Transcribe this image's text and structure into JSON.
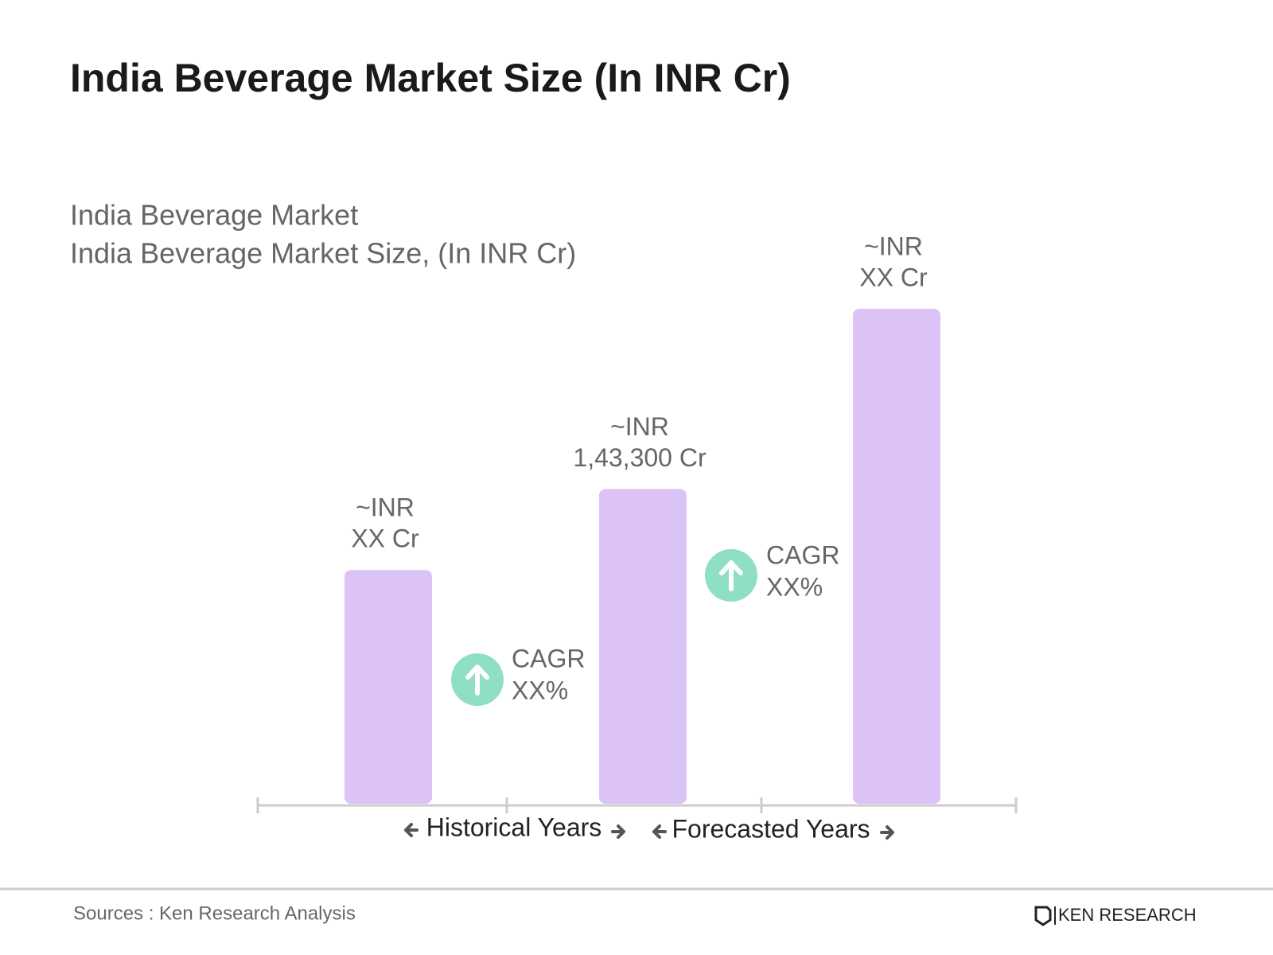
{
  "chart_data": {
    "type": "bar",
    "title": "India Beverage Market Size (In INR Cr)",
    "subtitle": [
      "India Beverage Market",
      "India Beverage Market Size, (In INR Cr)"
    ],
    "categories": [
      null,
      null,
      null
    ],
    "values": [
      106400,
      143300,
      225300
    ],
    "value_labels": [
      [
        "~INR",
        "XX Cr"
      ],
      [
        "~INR",
        "1,43,300 Cr"
      ],
      [
        "~INR",
        "XX Cr"
      ]
    ],
    "color": "#dcc3f5",
    "cagr_labels": [
      [
        "CAGR",
        "XX%"
      ],
      [
        "CAGR",
        "XX%"
      ]
    ],
    "cagr_color": "#8fdfc4",
    "periods": [
      "Historical Years",
      "Forecasted Years"
    ],
    "source": "Sources : Ken Research Analysis",
    "brand": "KEN RESEARCH"
  }
}
